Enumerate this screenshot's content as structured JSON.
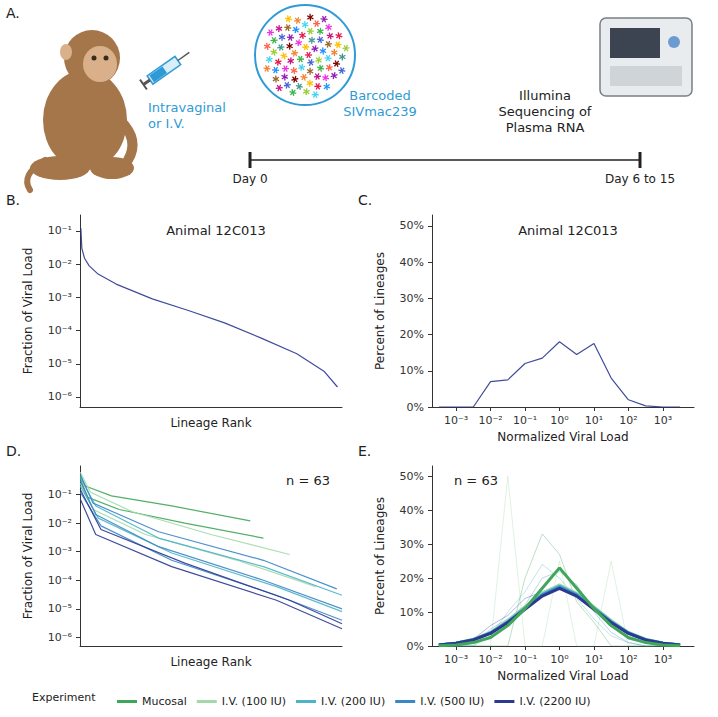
{
  "diagram": {
    "panel_label": "A.",
    "route": [
      "Intravaginal",
      "or I.V."
    ],
    "inoculum": [
      "Barcoded",
      "SIVmac239"
    ],
    "readout": [
      "Illumina",
      "Sequencing of",
      "Plasma RNA"
    ],
    "timeline": {
      "start": "Day 0",
      "end": "Day 6 to 15"
    }
  },
  "figure_legend": {
    "title": "Experiment",
    "items": [
      {
        "name": "Mucosal",
        "color": "#3fa65a"
      },
      {
        "name": "I.V. (100 IU)",
        "color": "#a3d9a8"
      },
      {
        "name": "I.V. (200 IU)",
        "color": "#4cb3c8"
      },
      {
        "name": "I.V. (500 IU)",
        "color": "#3b86c6"
      },
      {
        "name": "I.V. (2200 IU)",
        "color": "#2b3990"
      }
    ]
  },
  "chart_data": [
    {
      "panel_label": "B.",
      "type": "line",
      "title": "Animal 12C013",
      "x_label": "Lineage Rank",
      "y_label": "Fraction of Viral Load",
      "log": "y",
      "grid": false,
      "tick_labels": "y",
      "xlim": [
        0,
        290
      ],
      "ylim": [
        5e-07,
        0.3
      ],
      "yticks": [
        {
          "value": 0.1,
          "label": "10⁻¹"
        },
        {
          "value": 0.01,
          "label": "10⁻²"
        },
        {
          "value": 0.001,
          "label": "10⁻³"
        },
        {
          "value": 0.0001,
          "label": "10⁻⁴"
        },
        {
          "value": 1e-05,
          "label": "10⁻⁵"
        },
        {
          "value": 1e-06,
          "label": "10⁻⁶"
        }
      ],
      "series": [
        {
          "name": "I.V. (2200 IU)",
          "color": "#2b3990",
          "line_style": "solid",
          "x": [
            1,
            2,
            5,
            10,
            20,
            40,
            80,
            120,
            160,
            200,
            240,
            270,
            285
          ],
          "values": [
            0.12,
            0.03,
            0.015,
            0.009,
            0.005,
            0.0025,
            0.0009,
            0.0004,
            0.00017,
            6e-05,
            2e-05,
            6e-06,
            2e-06
          ]
        }
      ]
    },
    {
      "panel_label": "C.",
      "type": "line",
      "title": "Animal 12C013",
      "x_label": "Normalized Viral Load",
      "y_label": "Percent of Lineages",
      "log": "x",
      "grid": false,
      "xlim": [
        0.0002,
        8000
      ],
      "ylim": [
        0,
        53
      ],
      "xticks": [
        {
          "value": 0.001,
          "label": "10⁻³"
        },
        {
          "value": 0.01,
          "label": "10⁻²"
        },
        {
          "value": 0.1,
          "label": "10⁻¹"
        },
        {
          "value": 1,
          "label": "10⁰"
        },
        {
          "value": 10,
          "label": "10¹"
        },
        {
          "value": 100,
          "label": "10²"
        },
        {
          "value": 1000,
          "label": "10³"
        }
      ],
      "yticks": [
        {
          "value": 0,
          "label": "0%"
        },
        {
          "value": 10,
          "label": "10%"
        },
        {
          "value": 20,
          "label": "20%"
        },
        {
          "value": 30,
          "label": "30%"
        },
        {
          "value": 40,
          "label": "40%"
        },
        {
          "value": 50,
          "label": "50%"
        }
      ],
      "x": [
        0.000316,
        0.001,
        0.00316,
        0.01,
        0.0316,
        0.1,
        0.316,
        1,
        3.16,
        10,
        31.6,
        100,
        316,
        1000,
        3162
      ],
      "series": [
        {
          "name": "I.V. (2200 IU)",
          "color": "#2b3990",
          "line_style": "solid",
          "values": [
            0,
            0,
            0,
            7,
            7.5,
            12,
            13.5,
            18,
            14.5,
            17.5,
            8,
            2,
            0.3,
            0,
            0
          ]
        }
      ]
    },
    {
      "panel_label": "D.",
      "type": "line",
      "annotation": "n = 63",
      "x_label": "Lineage Rank",
      "y_label": "Fraction of Viral Load",
      "log": "y",
      "grid": false,
      "tick_labels": "y",
      "xlim": [
        0,
        1000
      ],
      "ylim": [
        5e-07,
        1
      ],
      "yticks": [
        {
          "value": 0.1,
          "label": "10⁻¹"
        },
        {
          "value": 0.01,
          "label": "10⁻²"
        },
        {
          "value": 0.001,
          "label": "10⁻³"
        },
        {
          "value": 0.0001,
          "label": "10⁻⁴"
        },
        {
          "value": 1e-05,
          "label": "10⁻⁵"
        },
        {
          "value": 1e-06,
          "label": "10⁻⁶"
        }
      ],
      "series": [
        {
          "name": "Mucosal",
          "color": "#3fa65a",
          "line_style": "solid",
          "x": [
            1,
            20,
            120,
            350,
            650
          ],
          "values": [
            0.45,
            0.2,
            0.09,
            0.04,
            0.012
          ]
        },
        {
          "name": "Mucosal",
          "color": "#3fa65a",
          "line_style": "solid",
          "x": [
            1,
            30,
            150,
            400,
            700
          ],
          "values": [
            0.35,
            0.08,
            0.03,
            0.01,
            0.003
          ]
        },
        {
          "name": "I.V. (100 IU)",
          "color": "#a3d9a8",
          "line_style": "solid",
          "x": [
            1,
            40,
            200,
            500,
            800
          ],
          "values": [
            0.6,
            0.12,
            0.025,
            0.004,
            0.0008
          ]
        },
        {
          "name": "I.V. (100 IU)",
          "color": "#a3d9a8",
          "line_style": "solid",
          "x": [
            1,
            50,
            250,
            600,
            900
          ],
          "values": [
            0.25,
            0.03,
            0.004,
            0.0005,
            6e-05
          ]
        },
        {
          "name": "I.V. (200 IU)",
          "color": "#4cb3c8",
          "line_style": "solid",
          "x": [
            1,
            60,
            300,
            700,
            1000
          ],
          "values": [
            0.4,
            0.04,
            0.003,
            0.0003,
            3e-05
          ]
        },
        {
          "name": "I.V. (200 IU)",
          "color": "#4cb3c8",
          "line_style": "solid",
          "x": [
            1,
            70,
            350,
            750,
            1000
          ],
          "values": [
            0.2,
            0.015,
            0.0009,
            6e-05,
            8e-06
          ]
        },
        {
          "name": "I.V. (500 IU)",
          "color": "#3b86c6",
          "line_style": "solid",
          "x": [
            1,
            60,
            300,
            700,
            1000
          ],
          "values": [
            0.3,
            0.02,
            0.0015,
            0.0001,
            1e-05
          ]
        },
        {
          "name": "I.V. (500 IU)",
          "color": "#3b86c6",
          "line_style": "solid",
          "x": [
            1,
            80,
            350,
            750,
            1000
          ],
          "values": [
            0.12,
            0.008,
            0.0005,
            3e-05,
            4e-06
          ]
        },
        {
          "name": "I.V. (500 IU)",
          "color": "#3b86c6",
          "line_style": "solid",
          "x": [
            1,
            50,
            300,
            700,
            980
          ],
          "values": [
            0.5,
            0.05,
            0.005,
            0.0005,
            5e-05
          ]
        },
        {
          "name": "I.V. (2200 IU)",
          "color": "#2b3990",
          "line_style": "solid",
          "x": [
            1,
            60,
            350,
            750,
            1000
          ],
          "values": [
            0.07,
            0.004,
            0.0003,
            2e-05,
            2e-06
          ]
        },
        {
          "name": "I.V. (2200 IU)",
          "color": "#2b3990",
          "line_style": "solid",
          "x": [
            1,
            80,
            400,
            800,
            1000
          ],
          "values": [
            0.15,
            0.006,
            0.0004,
            2e-05,
            3e-06
          ]
        }
      ]
    },
    {
      "panel_label": "E.",
      "type": "line",
      "annotation": "n = 63",
      "x_label": "Normalized Viral Load",
      "y_label": "Percent of Lineages",
      "log": "x",
      "grid": false,
      "xlim": [
        0.0002,
        8000
      ],
      "ylim": [
        0,
        53
      ],
      "xticks": [
        {
          "value": 0.001,
          "label": "10⁻³"
        },
        {
          "value": 0.01,
          "label": "10⁻²"
        },
        {
          "value": 0.1,
          "label": "10⁻¹"
        },
        {
          "value": 1,
          "label": "10⁰"
        },
        {
          "value": 10,
          "label": "10¹"
        },
        {
          "value": 100,
          "label": "10²"
        },
        {
          "value": 1000,
          "label": "10³"
        }
      ],
      "yticks": [
        {
          "value": 0,
          "label": "0%"
        },
        {
          "value": 10,
          "label": "10%"
        },
        {
          "value": 20,
          "label": "20%"
        },
        {
          "value": 30,
          "label": "30%"
        },
        {
          "value": 40,
          "label": "40%"
        },
        {
          "value": 50,
          "label": "50%"
        }
      ],
      "x": [
        0.000316,
        0.001,
        0.00316,
        0.01,
        0.0316,
        0.1,
        0.316,
        1,
        3.16,
        10,
        31.6,
        100,
        316,
        1000,
        3162
      ],
      "series": [
        {
          "name": "I.V. (100 IU)",
          "color": "#a3d9a8",
          "line_style": "faint",
          "values": [
            0,
            0,
            0,
            0,
            50,
            0,
            0,
            25,
            0,
            0,
            25,
            0,
            0,
            0,
            0
          ]
        },
        {
          "name": "Mucosal",
          "color": "#3fa65a",
          "line_style": "faint",
          "values": [
            0,
            0,
            0,
            0,
            0,
            20,
            33,
            27,
            13,
            7,
            0,
            0,
            0,
            0,
            0
          ]
        },
        {
          "name": "I.V. (200 IU)",
          "color": "#4cb3c8",
          "line_style": "faint",
          "values": [
            0,
            0,
            0,
            3,
            10,
            16,
            24,
            20,
            14,
            8,
            3,
            1,
            0,
            0,
            0
          ]
        },
        {
          "name": "I.V. (500 IU)",
          "color": "#3b86c6",
          "line_style": "faint",
          "values": [
            0,
            0,
            0,
            5,
            8,
            12,
            20,
            22,
            18,
            10,
            4,
            1,
            0,
            0,
            0
          ]
        },
        {
          "name": "I.V. (2200 IU)",
          "color": "#2b3990",
          "line_style": "faint",
          "values": [
            0,
            0,
            2,
            6,
            9,
            14,
            16,
            18,
            15,
            11,
            6,
            2,
            1,
            0,
            0
          ]
        },
        {
          "name": "I.V. (100 IU)",
          "color": "#a3d9a8",
          "line_style": "bold",
          "values": [
            0.3,
            0.9,
            2,
            4,
            7.5,
            11.5,
            15.5,
            18,
            15.5,
            11.5,
            7.5,
            4,
            2,
            0.9,
            0.3
          ]
        },
        {
          "name": "I.V. (200 IU)",
          "color": "#4cb3c8",
          "line_style": "bold",
          "values": [
            0.3,
            0.8,
            1.9,
            3.9,
            7.2,
            11.2,
            15.2,
            17.6,
            15.2,
            11.2,
            7.2,
            3.9,
            1.9,
            0.8,
            0.3
          ]
        },
        {
          "name": "I.V. (500 IU)",
          "color": "#3b86c6",
          "line_style": "bold",
          "values": [
            0.3,
            0.8,
            1.8,
            3.8,
            7,
            11,
            15,
            17.3,
            15,
            11,
            7,
            3.8,
            1.8,
            0.8,
            0.3
          ]
        },
        {
          "name": "I.V. (2200 IU)",
          "color": "#2b3990",
          "line_style": "bold",
          "values": [
            0.3,
            0.8,
            1.8,
            3.7,
            6.9,
            10.8,
            14.7,
            17,
            14.7,
            10.8,
            6.9,
            3.7,
            1.8,
            0.8,
            0.3
          ]
        },
        {
          "name": "Mucosal",
          "color": "#3fa65a",
          "line_style": "bold",
          "values": [
            0.1,
            0.3,
            1,
            2.5,
            6,
            11,
            17,
            23,
            17,
            11,
            6,
            2.5,
            1,
            0.3,
            0.1
          ]
        }
      ]
    }
  ]
}
